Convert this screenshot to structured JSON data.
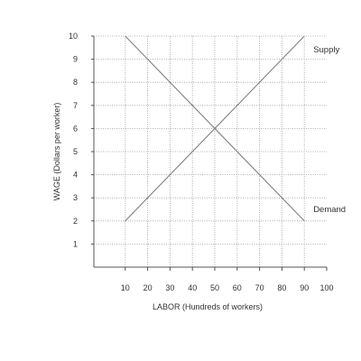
{
  "chart_data": {
    "type": "line",
    "xlabel": "LABOR (Hundreds of workers)",
    "ylabel": "WAGE (Dollars per worker)",
    "xlim": [
      0,
      100
    ],
    "ylim": [
      0,
      10
    ],
    "x_ticks": [
      10,
      20,
      30,
      40,
      50,
      60,
      70,
      80,
      90,
      100
    ],
    "y_ticks": [
      1,
      2,
      3,
      4,
      5,
      6,
      7,
      8,
      9,
      10
    ],
    "grid": true,
    "grid_style": "dotted",
    "series": [
      {
        "name": "Supply",
        "x": [
          10,
          90
        ],
        "y": [
          2,
          10
        ]
      },
      {
        "name": "Demand",
        "x": [
          10,
          90
        ],
        "y": [
          10,
          2
        ]
      }
    ],
    "colors": {
      "line": "#7f7f7f",
      "grid": "#9a9a9a",
      "axis": "#555555",
      "text": "#333333"
    }
  }
}
